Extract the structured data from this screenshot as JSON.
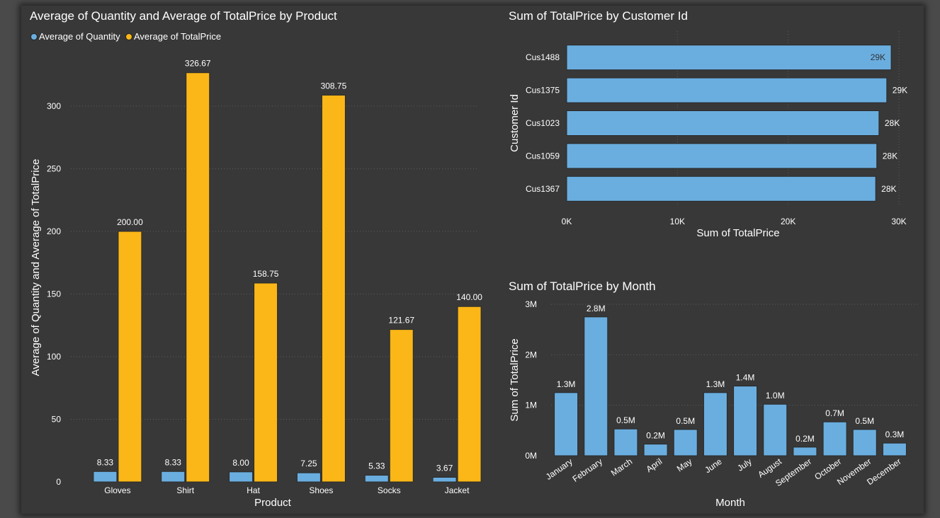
{
  "colors": {
    "quantity": "#6aaee0",
    "totalprice": "#fbb717",
    "bar_blue": "#6aaee0",
    "background": "#383838"
  },
  "chart_data": [
    {
      "id": "product_chart",
      "type": "bar",
      "title": "Average of Quantity and Average of TotalPrice by Product",
      "xlabel": "Product",
      "ylabel": "Average of Quantity and Average of TotalPrice",
      "categories": [
        "Gloves",
        "Shirt",
        "Hat",
        "Shoes",
        "Socks",
        "Jacket"
      ],
      "series": [
        {
          "name": "Average of Quantity",
          "values": [
            8.33,
            8.33,
            8.0,
            7.25,
            5.33,
            3.67
          ],
          "labels": [
            "8.33",
            "8.33",
            "8.00",
            "7.25",
            "5.33",
            "3.67"
          ]
        },
        {
          "name": "Average of TotalPrice",
          "values": [
            200.0,
            326.67,
            158.75,
            308.75,
            121.67,
            140.0
          ],
          "labels": [
            "200.00",
            "326.67",
            "158.75",
            "308.75",
            "121.67",
            "140.00"
          ]
        }
      ],
      "ylim": [
        0,
        335
      ],
      "yticks": [
        0,
        50,
        100,
        150,
        200,
        250,
        300
      ],
      "grid": true,
      "legend": "top-left"
    },
    {
      "id": "customer_chart",
      "type": "bar",
      "orientation": "horizontal",
      "title": "Sum of TotalPrice by Customer Id",
      "xlabel": "Sum of TotalPrice",
      "ylabel": "Customer Id",
      "categories": [
        "Cus1488",
        "Cus1375",
        "Cus1023",
        "Cus1059",
        "Cus1367"
      ],
      "values": [
        29300,
        28900,
        28200,
        28000,
        27900
      ],
      "labels": [
        "29K",
        "29K",
        "28K",
        "28K",
        "28K"
      ],
      "xlim": [
        0,
        30000
      ],
      "xticks": [
        0,
        10000,
        20000,
        30000
      ],
      "xtick_labels": [
        "0K",
        "10K",
        "20K",
        "30K"
      ],
      "grid": true
    },
    {
      "id": "month_chart",
      "type": "bar",
      "title": "Sum of TotalPrice by Month",
      "xlabel": "Month",
      "ylabel": "Sum of TotalPrice",
      "categories": [
        "January",
        "February",
        "March",
        "April",
        "May",
        "June",
        "July",
        "August",
        "September",
        "October",
        "November",
        "December"
      ],
      "values": [
        1250000,
        2750000,
        530000,
        230000,
        520000,
        1250000,
        1380000,
        1020000,
        170000,
        670000,
        520000,
        250000
      ],
      "labels": [
        "1.3M",
        "2.8M",
        "0.5M",
        "0.2M",
        "0.5M",
        "1.3M",
        "1.4M",
        "1.0M",
        "0.2M",
        "0.7M",
        "0.5M",
        "0.3M"
      ],
      "ylim": [
        0,
        3000000
      ],
      "yticks": [
        0,
        1000000,
        2000000,
        3000000
      ],
      "ytick_labels": [
        "0M",
        "1M",
        "2M",
        "3M"
      ],
      "grid": true
    }
  ]
}
